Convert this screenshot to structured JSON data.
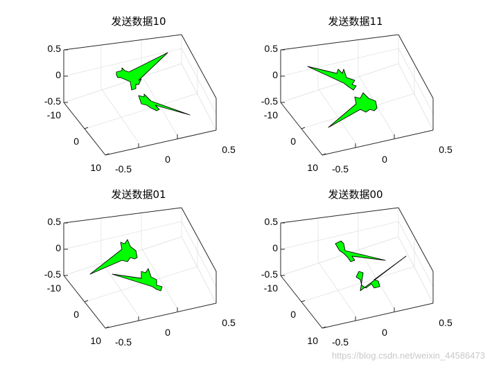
{
  "chart_data": [
    {
      "type": "3d-surface",
      "title": "发送数据10",
      "ticks": {
        "z": [
          "0.5",
          "0",
          "-0.5"
        ],
        "y": [
          "-10",
          "0",
          "10"
        ],
        "x": [
          "-0.5",
          "0",
          "0.5"
        ]
      },
      "zlim": [
        -0.5,
        0.5
      ],
      "ylim": [
        -10,
        10
      ],
      "xlim": [
        -0.5,
        0.5
      ],
      "grid": true,
      "surface_color": "#00ff00"
    },
    {
      "type": "3d-surface",
      "title": "发送数据11",
      "ticks": {
        "z": [
          "0.5",
          "0",
          "-0.5"
        ],
        "y": [
          "-10",
          "0",
          "10"
        ],
        "x": [
          "-0.5",
          "0",
          "0.5"
        ]
      },
      "zlim": [
        -0.5,
        0.5
      ],
      "ylim": [
        -10,
        10
      ],
      "xlim": [
        -0.5,
        0.5
      ],
      "grid": true,
      "surface_color": "#00ff00"
    },
    {
      "type": "3d-surface",
      "title": "发送数据01",
      "ticks": {
        "z": [
          "0.5",
          "0",
          "-0.5"
        ],
        "y": [
          "-10",
          "0",
          "10"
        ],
        "x": [
          "-0.5",
          "0",
          "0.5"
        ]
      },
      "zlim": [
        -0.5,
        0.5
      ],
      "ylim": [
        -10,
        10
      ],
      "xlim": [
        -0.5,
        0.5
      ],
      "grid": true,
      "surface_color": "#00ff00"
    },
    {
      "type": "3d-surface",
      "title": "发送数据00",
      "ticks": {
        "z": [
          "0.5",
          "0",
          "-0.5"
        ],
        "y": [
          "-10",
          "0",
          "10"
        ],
        "x": [
          "-0.5",
          "0",
          "0.5"
        ]
      },
      "zlim": [
        -0.5,
        0.5
      ],
      "ylim": [
        -10,
        10
      ],
      "xlim": [
        -0.5,
        0.5
      ],
      "grid": true,
      "surface_color": "#00ff00"
    }
  ],
  "watermark": "https://blog.csdn.net/weixin_44586473"
}
